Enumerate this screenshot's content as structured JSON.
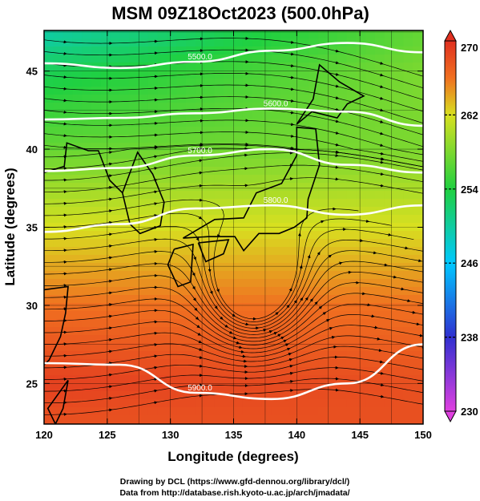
{
  "chart_data": {
    "type": "heatmap",
    "title": "MSM 09Z18Oct2023 (500.0hPa)",
    "xlabel": "Longitude (degrees)",
    "ylabel": "Latitude  (degrees)",
    "xlim": [
      120,
      150
    ],
    "ylim": [
      22.4,
      47.6
    ],
    "x_ticks": [
      120,
      125,
      130,
      135,
      140,
      145,
      150
    ],
    "y_ticks": [
      25,
      30,
      35,
      40,
      45
    ],
    "grid": true,
    "colorbar": {
      "min": 230,
      "max": 270,
      "ticks": [
        230,
        238,
        246,
        254,
        262,
        270
      ],
      "colors": [
        "#e040e0",
        "#3030d0",
        "#00c8ff",
        "#20d040",
        "#d8e020",
        "#f07020",
        "#e03020"
      ]
    },
    "temperature_field": {
      "description": "approximate temperature (K) at sample latitudes",
      "latitudes": [
        47,
        45,
        40,
        35,
        30,
        25,
        23
      ],
      "values_west": [
        250,
        253,
        257,
        262,
        266,
        269,
        268
      ],
      "values_east": [
        257,
        258,
        258,
        262,
        266,
        268,
        268
      ]
    },
    "contours": [
      {
        "value": 5500,
        "label": "5500.0",
        "lat": [
          45.5,
          45.2,
          45.6,
          46.3,
          46.8,
          46.2
        ]
      },
      {
        "value": 5600,
        "label": "5600.0",
        "lat": [
          41.9,
          42.0,
          42.3,
          42.6,
          42.4,
          41.5
        ]
      },
      {
        "value": 5700,
        "label": "5700.0",
        "lat": [
          38.6,
          38.8,
          39.6,
          40.0,
          39.0,
          38.5
        ]
      },
      {
        "value": 5800,
        "label": "5800.0",
        "lat": [
          34.7,
          35.2,
          36.2,
          36.4,
          35.8,
          36.4
        ]
      },
      {
        "value": 5900,
        "label": "5900.0",
        "lat": [
          26.3,
          26.2,
          24.4,
          24.0,
          25.0,
          27.5
        ]
      }
    ],
    "contour_lons": [
      120,
      126,
      132,
      138,
      144,
      150
    ]
  },
  "credits": {
    "line1": "Drawing by DCL (https://www.gfd-dennou.org/library/dcl/)",
    "line2": "Data from http://database.rish.kyoto-u.ac.jp/arch/jmadata/"
  }
}
